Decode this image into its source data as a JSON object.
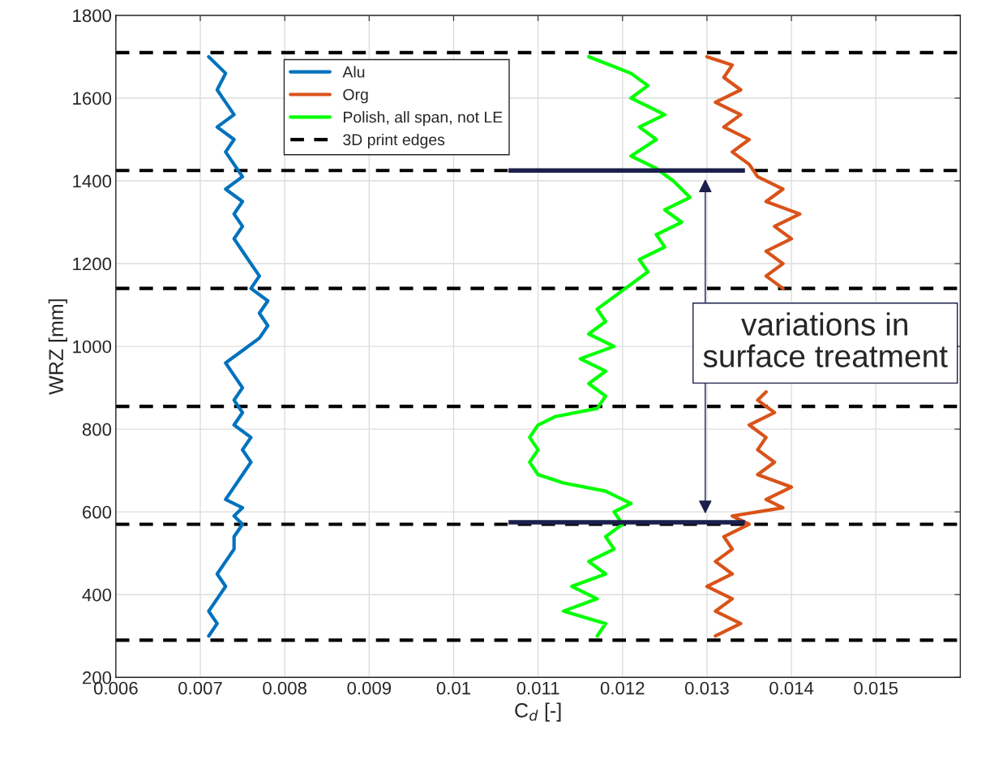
{
  "chart_data": {
    "type": "line",
    "xlabel": "C$_{d}$ [-]",
    "ylabel": "WRZ [mm]",
    "xlim": [
      0.006,
      0.016
    ],
    "xticks": [
      0.006,
      0.007,
      0.008,
      0.009,
      0.01,
      0.011,
      0.012,
      0.013,
      0.014,
      0.015
    ],
    "ylim": [
      200,
      1800
    ],
    "yticks": [
      200,
      400,
      600,
      800,
      1000,
      1200,
      1400,
      1600,
      1800
    ],
    "grid": true,
    "legend": "top left",
    "line_style": "solid",
    "series": [
      {
        "name": "Alu",
        "color": "#0072bd",
        "x": [
          0.0071,
          0.0072,
          0.0071,
          0.0072,
          0.0073,
          0.0072,
          0.0073,
          0.0074,
          0.0074,
          0.0075,
          0.0074,
          0.0075,
          0.0073,
          0.0074,
          0.0075,
          0.0076,
          0.0075,
          0.0076,
          0.0074,
          0.0075,
          0.0074,
          0.0075,
          0.0074,
          0.0073,
          0.0075,
          0.0077,
          0.0078,
          0.0077,
          0.0078,
          0.0076,
          0.0077,
          0.0076,
          0.0075,
          0.0074,
          0.0075,
          0.0074,
          0.0075,
          0.0073,
          0.0075,
          0.0074,
          0.0073,
          0.0074,
          0.0072,
          0.0074,
          0.0073,
          0.0072,
          0.0073,
          0.0071
        ],
        "values": [
          300,
          330,
          360,
          390,
          420,
          450,
          480,
          510,
          540,
          570,
          590,
          610,
          630,
          660,
          690,
          720,
          750,
          780,
          810,
          840,
          870,
          900,
          930,
          960,
          990,
          1020,
          1050,
          1080,
          1110,
          1140,
          1170,
          1200,
          1230,
          1260,
          1290,
          1320,
          1350,
          1380,
          1410,
          1440,
          1470,
          1500,
          1530,
          1560,
          1590,
          1620,
          1660,
          1700
        ]
      },
      {
        "name": "Org",
        "color": "#d95319",
        "x": [
          0.0131,
          0.0134,
          0.0131,
          0.0133,
          0.013,
          0.0133,
          0.0131,
          0.0133,
          0.0132,
          0.0135,
          0.0133,
          0.0139,
          0.0137,
          0.014,
          0.0136,
          0.0138,
          0.0136,
          0.0137,
          0.0135,
          0.0138,
          0.0136,
          0.0137,
          null,
          0.0139,
          0.0137,
          0.0139,
          0.0137,
          0.014,
          0.0138,
          0.0141,
          0.0137,
          0.0139,
          0.0136,
          0.0135,
          0.0133,
          0.0135,
          0.0132,
          0.0134,
          0.0131,
          0.0134,
          0.0132,
          0.0133,
          0.013
        ],
        "values": [
          300,
          330,
          360,
          390,
          420,
          450,
          480,
          510,
          540,
          570,
          590,
          610,
          630,
          660,
          690,
          720,
          750,
          780,
          810,
          840,
          870,
          890,
          null,
          1140,
          1170,
          1200,
          1230,
          1260,
          1290,
          1320,
          1350,
          1380,
          1410,
          1440,
          1470,
          1500,
          1530,
          1560,
          1590,
          1620,
          1650,
          1680,
          1700
        ]
      },
      {
        "name": "Polish, all span, not LE",
        "color": "#00ff00",
        "x": [
          0.0117,
          0.0118,
          0.0113,
          0.0117,
          0.0114,
          0.0118,
          0.0116,
          0.0119,
          0.0118,
          0.012,
          0.0119,
          0.0121,
          0.0118,
          0.0113,
          0.011,
          0.0109,
          0.011,
          0.0109,
          0.011,
          0.0112,
          0.0117,
          0.0118,
          0.0116,
          0.0118,
          0.0115,
          0.0119,
          0.0116,
          0.0118,
          0.0117,
          0.0119,
          0.0121,
          0.0123,
          0.0122,
          0.0125,
          0.0124,
          0.0127,
          0.0125,
          0.0128,
          0.0126,
          0.0124,
          0.0121,
          0.0124,
          0.0122,
          0.0125,
          0.0121,
          0.0123,
          0.0121,
          0.0116
        ],
        "values": [
          300,
          330,
          360,
          390,
          420,
          450,
          480,
          510,
          540,
          570,
          600,
          620,
          650,
          670,
          690,
          720,
          750,
          780,
          810,
          830,
          850,
          880,
          910,
          940,
          970,
          1000,
          1030,
          1060,
          1090,
          1120,
          1150,
          1180,
          1210,
          1240,
          1270,
          1300,
          1330,
          1360,
          1400,
          1430,
          1460,
          1500,
          1530,
          1560,
          1600,
          1630,
          1660,
          1700
        ]
      }
    ],
    "ref_lines": [
      {
        "axis": "y",
        "value": 290,
        "label": "3D print edges",
        "color": "#000000",
        "line_style": "dashed"
      },
      {
        "axis": "y",
        "value": 570,
        "color": "#000000",
        "line_style": "dashed"
      },
      {
        "axis": "y",
        "value": 855,
        "color": "#000000",
        "line_style": "dashed"
      },
      {
        "axis": "y",
        "value": 1140,
        "color": "#000000",
        "line_style": "dashed"
      },
      {
        "axis": "y",
        "value": 1425,
        "color": "#000000",
        "line_style": "dashed"
      },
      {
        "axis": "y",
        "value": 575,
        "color": "#1b1f4b",
        "line_style": "solid"
      },
      {
        "axis": "y",
        "value": 1425,
        "color": "#1b1f4b",
        "line_style": "solid"
      },
      {
        "axis": "y",
        "value": 1710,
        "color": "#000000",
        "line_style": "dashed"
      }
    ],
    "annotations": [
      "variations in\nsurface treatment"
    ]
  }
}
